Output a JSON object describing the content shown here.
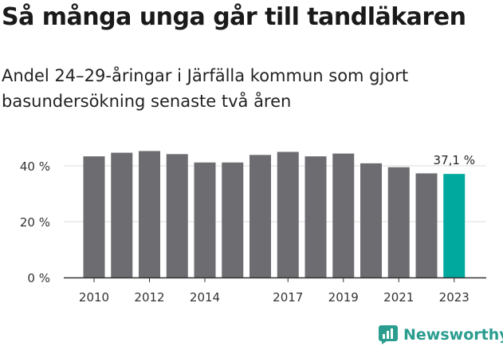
{
  "title": "Så många unga går till tandläkaren",
  "subtitle": "Andel 24–29-åringar i Järfälla kommun som gjort basundersökning senaste två åren",
  "brand": {
    "name": "Newsworthy",
    "icon": "newsworthy-logo-icon"
  },
  "colors": {
    "bar": "#6d6c70",
    "highlight": "#00a99d",
    "grid": "#dcdcdc",
    "axis": "#333333",
    "brand": "#2a9d8f"
  },
  "chart_data": {
    "type": "bar",
    "categories": [
      "2010",
      "2011",
      "2012",
      "2013",
      "2014",
      "2015",
      "2016",
      "2017",
      "2018",
      "2019",
      "2020",
      "2021",
      "2022",
      "2023"
    ],
    "x_tick_labels": [
      "2010",
      "2012",
      "2014",
      "2017",
      "2019",
      "2021",
      "2023"
    ],
    "values": [
      43.4,
      44.7,
      45.3,
      44.2,
      41.2,
      41.2,
      43.9,
      45.0,
      43.4,
      44.4,
      40.9,
      39.5,
      37.3,
      37.1
    ],
    "highlight_index": 13,
    "highlight_label": "37,1 %",
    "y_ticks": [
      0,
      20,
      40
    ],
    "y_tick_labels": [
      "0 %",
      "20 %",
      "40 %"
    ],
    "ylim": [
      0,
      50
    ],
    "grid": true,
    "xlabel": "",
    "ylabel": ""
  }
}
